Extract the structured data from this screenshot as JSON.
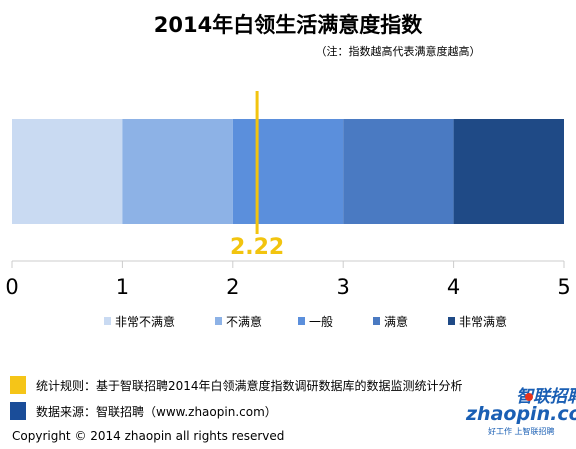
{
  "chart_data": {
    "type": "bar",
    "title": "2014年白领生活满意度指数",
    "subtitle": "（注：指数越高代表满意度越高）",
    "xlim": [
      0,
      5
    ],
    "ticks": [
      "0",
      "1",
      "2",
      "3",
      "4",
      "5"
    ],
    "segments": [
      {
        "label": "非常不满意",
        "from": 0,
        "to": 1,
        "color": "#c9daf2"
      },
      {
        "label": "不满意",
        "from": 1,
        "to": 2,
        "color": "#8db2e6"
      },
      {
        "label": "一般",
        "from": 2,
        "to": 3,
        "color": "#5b8fdc"
      },
      {
        "label": "满意",
        "from": 3,
        "to": 4,
        "color": "#4a7ac2"
      },
      {
        "label": "非常满意",
        "from": 4,
        "to": 5,
        "color": "#1f4a86"
      }
    ],
    "marker": {
      "value": 2.22,
      "label": "2.22",
      "color": "#f2c40f"
    }
  },
  "footer": {
    "rule_text": "统计规则：基于智联招聘2014年白领满意度指数调研数据库的数据监测统计分析",
    "rule_color": "#f5c518",
    "source_text": "数据来源：智联招聘（www.zhaopin.com）",
    "source_color": "#1a4d99",
    "copyright": "Copyright  ©  2014 zhaopin all rights reserved"
  },
  "logo": {
    "cn": "智联招聘",
    "en": "zhaopin.com",
    "slogan": "好工作  上智联招聘",
    "color": "#1a5fb4",
    "accent": "#e8331c"
  }
}
